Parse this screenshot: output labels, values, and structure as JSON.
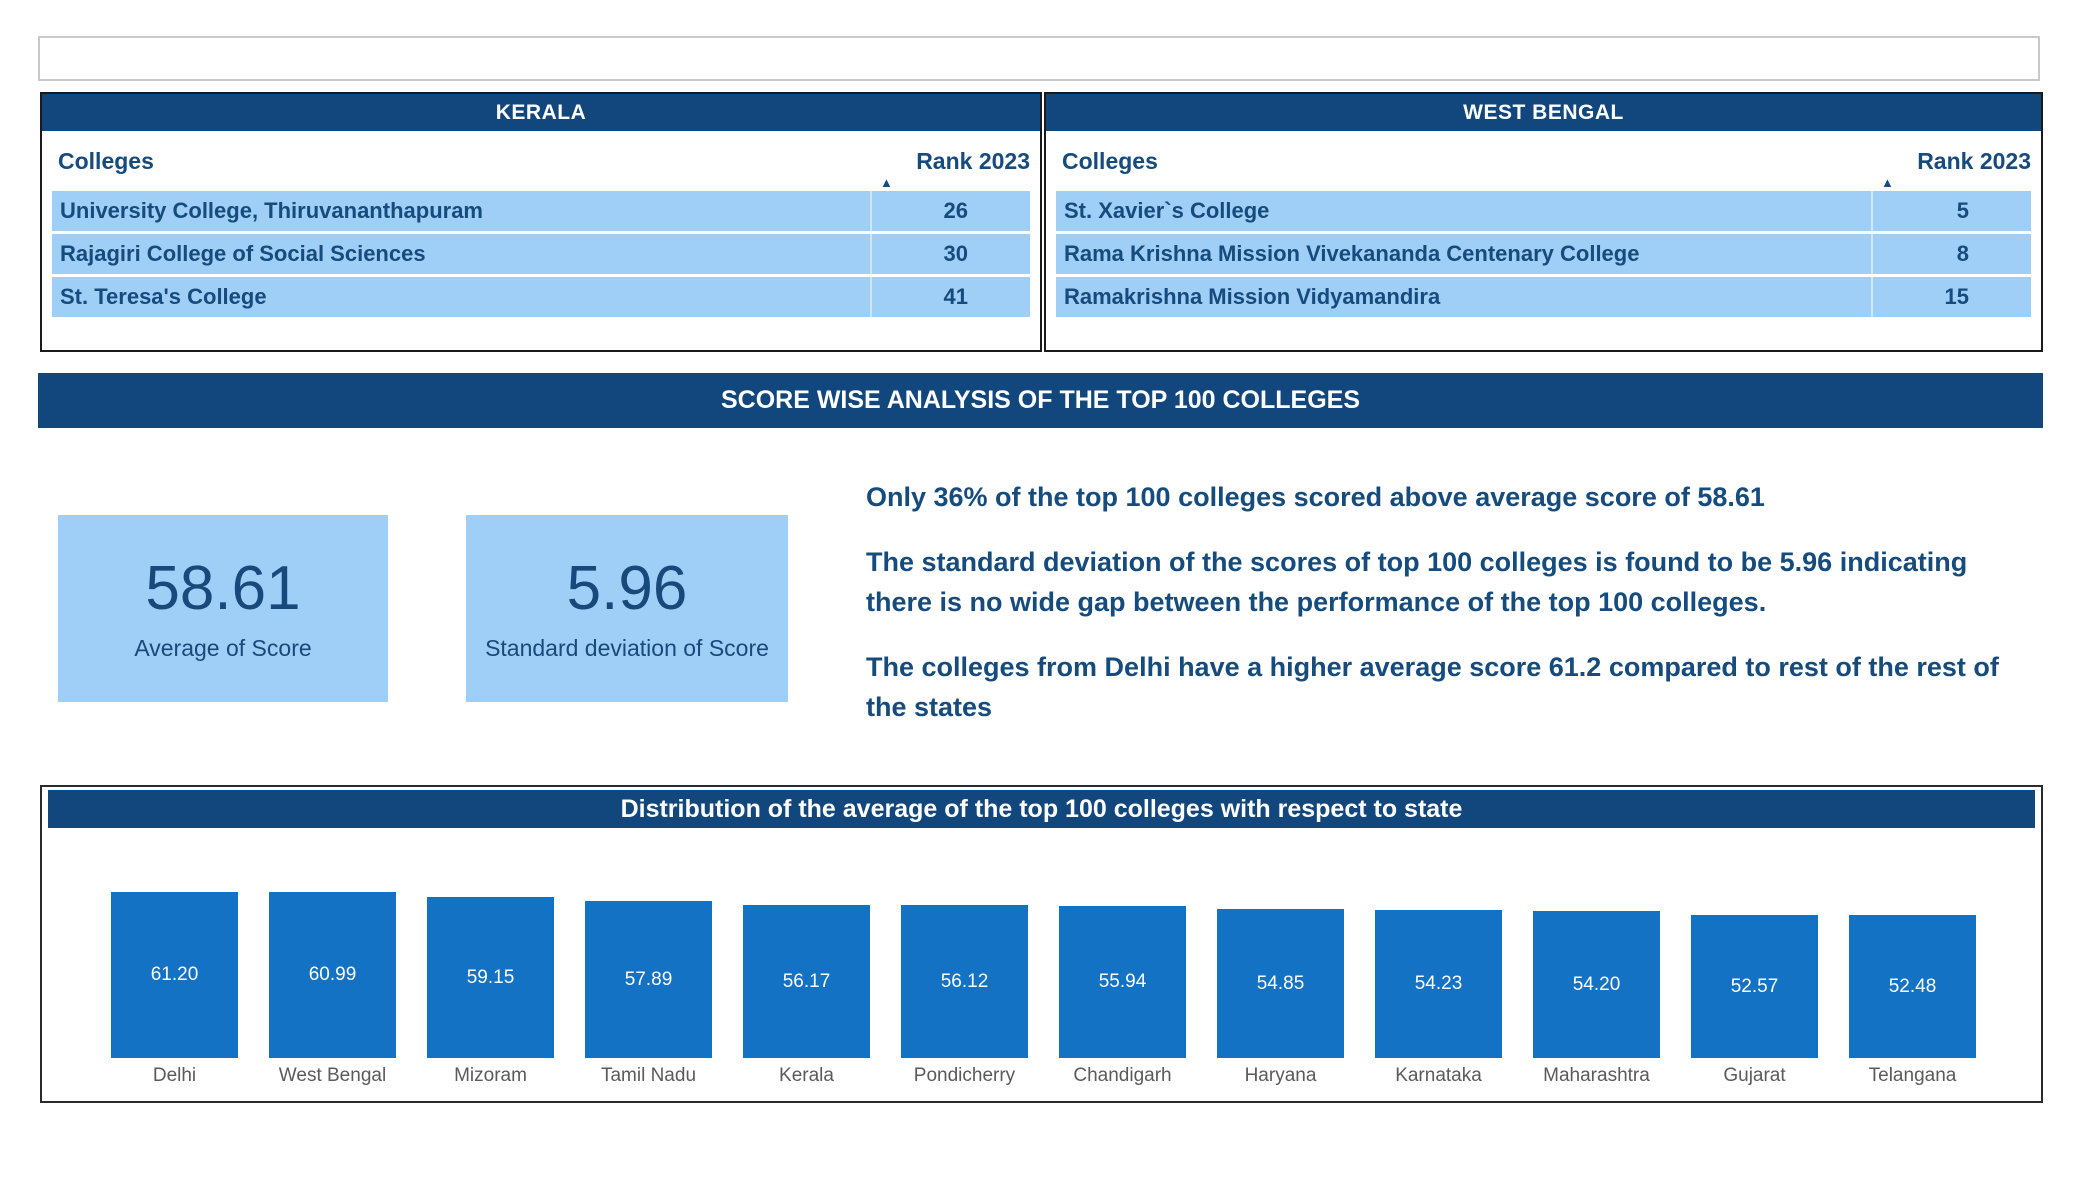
{
  "tables": [
    {
      "state": "KERALA",
      "col_college": "Colleges",
      "col_rank": "Rank 2023",
      "sort_icon": "▲",
      "rows": [
        {
          "college": "University College, Thiruvananthapuram",
          "rank": "26"
        },
        {
          "college": "Rajagiri College of Social Sciences",
          "rank": "30"
        },
        {
          "college": "St. Teresa's College",
          "rank": "41"
        }
      ]
    },
    {
      "state": "WEST BENGAL",
      "col_college": "Colleges",
      "col_rank": "Rank 2023",
      "sort_icon": "▲",
      "rows": [
        {
          "college": "St. Xavier`s College",
          "rank": "5"
        },
        {
          "college": "Rama Krishna Mission Vivekananda Centenary College",
          "rank": "8"
        },
        {
          "college": "Ramakrishna Mission Vidyamandira",
          "rank": "15"
        }
      ]
    }
  ],
  "banner": {
    "title": "SCORE WISE ANALYSIS OF THE TOP 100 COLLEGES"
  },
  "kpis": [
    {
      "value": "58.61",
      "label": "Average of Score"
    },
    {
      "value": "5.96",
      "label": "Standard deviation of Score"
    }
  ],
  "insights": [
    "Only 36% of the top 100 colleges scored above average score of 58.61",
    "The standard deviation of the scores of top 100 colleges is found to be 5.96 indicating there is no wide gap between the performance of the top 100 colleges.",
    "The colleges from Delhi have a higher average score 61.2 compared to rest of the rest of the states"
  ],
  "chart_data": {
    "type": "bar",
    "title": "Distribution of the average of the top 100 colleges with respect to state",
    "categories": [
      "Delhi",
      "West Bengal",
      "Mizoram",
      "Tamil Nadu",
      "Kerala",
      "Pondicherry",
      "Chandigarh",
      "Haryana",
      "Karnataka",
      "Maharashtra",
      "Gujarat",
      "Telangana"
    ],
    "values": [
      61.2,
      60.99,
      59.15,
      57.89,
      56.17,
      56.12,
      55.94,
      54.85,
      54.23,
      54.2,
      52.57,
      52.48
    ],
    "value_labels": [
      "61.20",
      "60.99",
      "59.15",
      "57.89",
      "56.17",
      "56.12",
      "55.94",
      "54.85",
      "54.23",
      "54.20",
      "52.57",
      "52.48"
    ],
    "xlabel": "",
    "ylabel": "",
    "ylim": [
      0,
      65
    ],
    "grid": false,
    "legend": "none",
    "value_label_position": "inside-center",
    "bar_color": "#1472C4"
  },
  "colors": {
    "band_navy": "#12477D",
    "light_blue": "#9FCEF7",
    "bar_blue": "#1472C4",
    "text_navy": "#154B7D",
    "category_gray": "#5A5A5A"
  }
}
